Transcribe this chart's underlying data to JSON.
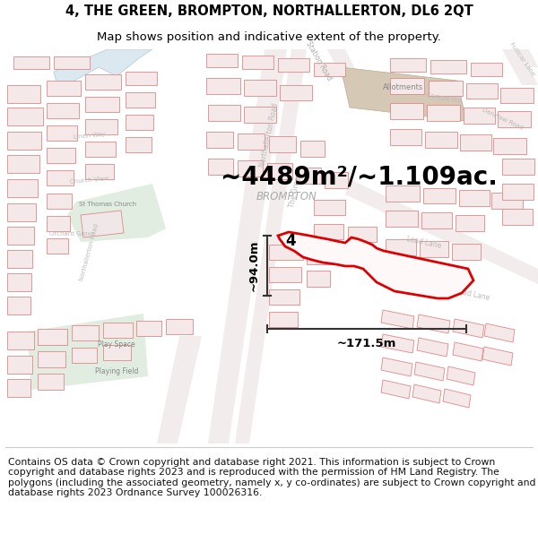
{
  "title_line1": "4, THE GREEN, BROMPTON, NORTHALLERTON, DL6 2QT",
  "title_line2": "Map shows position and indicative extent of the property.",
  "area_text": "~4489m²/~1.109ac.",
  "label_4": "4",
  "dim_height": "~94.0m",
  "dim_width": "~171.5m",
  "footer_text": "Contains OS data © Crown copyright and database right 2021. This information is subject to Crown copyright and database rights 2023 and is reproduced with the permission of HM Land Registry. The polygons (including the associated geometry, namely x, y co-ordinates) are subject to Crown copyright and database rights 2023 Ordnance Survey 100026316.",
  "bg_color": "#ffffff",
  "map_bg": "#ffffff",
  "building_fill": "#f5e8e8",
  "building_edge": "#e08888",
  "road_fill": "#e8e0e0",
  "highlight_edge": "#dd0000",
  "highlight_fill": "#ffffff",
  "green_area": "#ddeedd",
  "allotment_fill": "#d8cfc0",
  "water_blue": "#c8d8e8",
  "title_fontsize": 10.5,
  "subtitle_fontsize": 9.5,
  "area_fontsize": 20,
  "footer_fontsize": 7.8,
  "map_label_color": "#999999",
  "road_label_color": "#888888"
}
